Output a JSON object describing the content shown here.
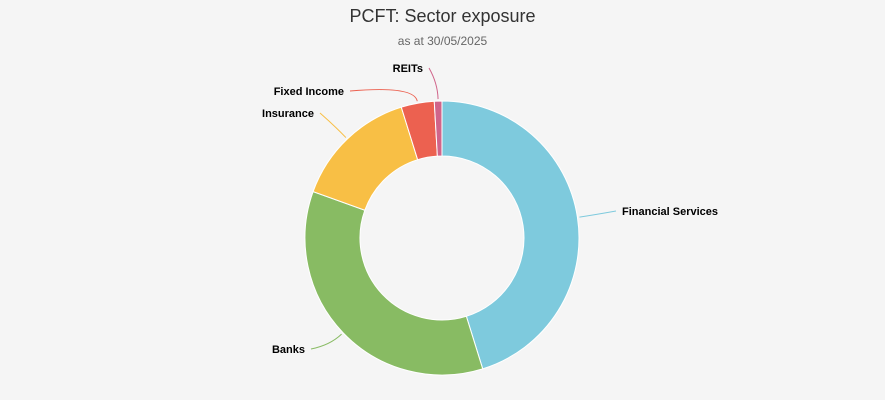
{
  "chart_data": {
    "type": "pie",
    "variant": "donut",
    "title": "PCFT: Sector exposure",
    "subtitle": "as at 30/05/2025",
    "categories": [
      "Financial Services",
      "Banks",
      "Insurance",
      "Fixed Income",
      "REITs"
    ],
    "values": [
      45.2,
      35.3,
      14.7,
      3.9,
      0.9
    ],
    "unit": "%",
    "colors": [
      "#7ecadd",
      "#88bb63",
      "#f8bf45",
      "#ec6150",
      "#d0648a"
    ],
    "legend": "none",
    "data_labels": "outside-with-connectors"
  }
}
